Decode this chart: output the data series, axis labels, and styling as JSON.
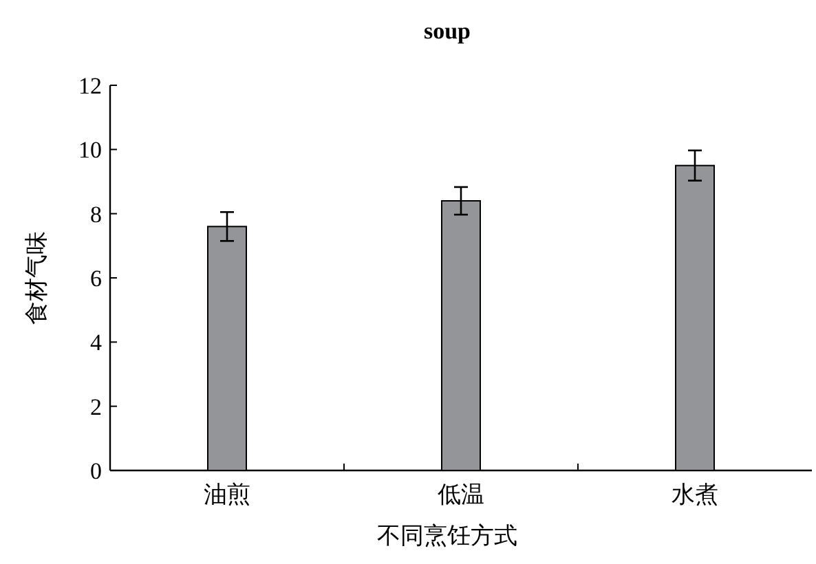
{
  "chart_data": {
    "type": "bar",
    "title": "soup",
    "xlabel": "不同烹饪方式",
    "ylabel": "食材气味",
    "categories": [
      "油煎",
      "低温",
      "水煮"
    ],
    "values": [
      7.6,
      8.4,
      9.5
    ],
    "errors": [
      0.45,
      0.43,
      0.47
    ],
    "color": "#939598",
    "ylim": [
      0,
      12
    ],
    "yticks": [
      0,
      2,
      4,
      6,
      8,
      10,
      12
    ]
  }
}
